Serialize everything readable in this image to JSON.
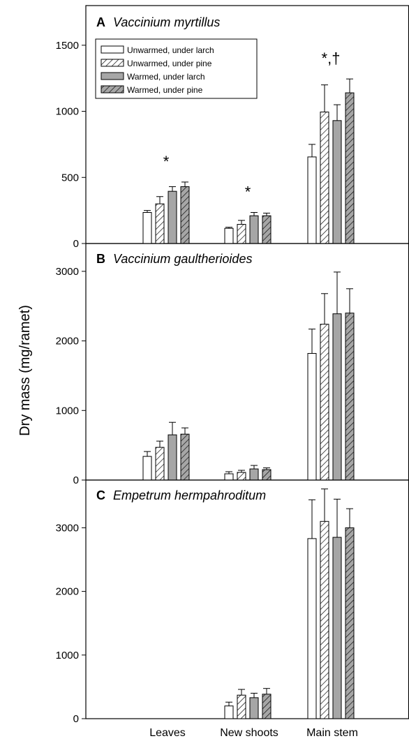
{
  "ylabel": "Dry mass (mg/ramet)",
  "categories": [
    "Leaves",
    "New shoots",
    "Main stem"
  ],
  "legend": [
    {
      "label": "Unwarmed, under larch",
      "fill": "#ffffff",
      "hatch": false
    },
    {
      "label": "Unwarmed, under pine",
      "fill": "#ffffff",
      "hatch": true
    },
    {
      "label": "Warmed, under larch",
      "fill": "#a6a6a6",
      "hatch": false
    },
    {
      "label": "Warmed, under pine",
      "fill": "#a6a6a6",
      "hatch": true
    }
  ],
  "chart_data": [
    {
      "type": "bar",
      "panel": "A",
      "title": "Vaccinium myrtillus",
      "categories": [
        "Leaves",
        "New shoots",
        "Main stem"
      ],
      "ylim": [
        0,
        1800
      ],
      "yticks": [
        0,
        500,
        1000,
        1500
      ],
      "series": [
        {
          "name": "Unwarmed, under larch",
          "values": [
            235,
            115,
            655
          ],
          "errors": [
            15,
            8,
            95
          ]
        },
        {
          "name": "Unwarmed, under pine",
          "values": [
            300,
            145,
            995
          ],
          "errors": [
            55,
            30,
            205
          ]
        },
        {
          "name": "Warmed, under larch",
          "values": [
            395,
            210,
            930
          ],
          "errors": [
            35,
            25,
            120
          ]
        },
        {
          "name": "Warmed, under pine",
          "values": [
            430,
            210,
            1140
          ],
          "errors": [
            35,
            20,
            105
          ]
        }
      ],
      "annotations": [
        {
          "text": "*",
          "category": "Leaves"
        },
        {
          "text": "*",
          "category": "New shoots"
        },
        {
          "text": "*,†",
          "category": "Main stem"
        }
      ]
    },
    {
      "type": "bar",
      "panel": "B",
      "title": "Vaccinium gaultherioides",
      "categories": [
        "Leaves",
        "New shoots",
        "Main stem"
      ],
      "ylim": [
        0,
        3400
      ],
      "yticks": [
        0,
        1000,
        2000,
        3000
      ],
      "series": [
        {
          "name": "Unwarmed, under larch",
          "values": [
            340,
            90,
            1820
          ],
          "errors": [
            70,
            30,
            350
          ]
        },
        {
          "name": "Unwarmed, under pine",
          "values": [
            470,
            110,
            2240
          ],
          "errors": [
            90,
            30,
            440
          ]
        },
        {
          "name": "Warmed, under larch",
          "values": [
            650,
            160,
            2390
          ],
          "errors": [
            180,
            50,
            600
          ]
        },
        {
          "name": "Warmed, under pine",
          "values": [
            660,
            150,
            2400
          ],
          "errors": [
            90,
            25,
            350
          ]
        }
      ],
      "annotations": []
    },
    {
      "type": "bar",
      "panel": "C",
      "title": "Empetrum hermpahroditum",
      "categories": [
        "Leaves",
        "New shoots",
        "Main stem"
      ],
      "ylim": [
        0,
        3750
      ],
      "yticks": [
        0,
        1000,
        2000,
        3000
      ],
      "series": [
        {
          "name": "Unwarmed, under larch",
          "values": [
            null,
            200,
            2830
          ],
          "errors": [
            null,
            60,
            610
          ]
        },
        {
          "name": "Unwarmed, under pine",
          "values": [
            null,
            370,
            3100
          ],
          "errors": [
            null,
            90,
            510
          ]
        },
        {
          "name": "Warmed, under larch",
          "values": [
            null,
            330,
            2850
          ],
          "errors": [
            null,
            70,
            600
          ]
        },
        {
          "name": "Warmed, under pine",
          "values": [
            null,
            385,
            3000
          ],
          "errors": [
            null,
            90,
            300
          ]
        }
      ],
      "annotations": []
    }
  ]
}
